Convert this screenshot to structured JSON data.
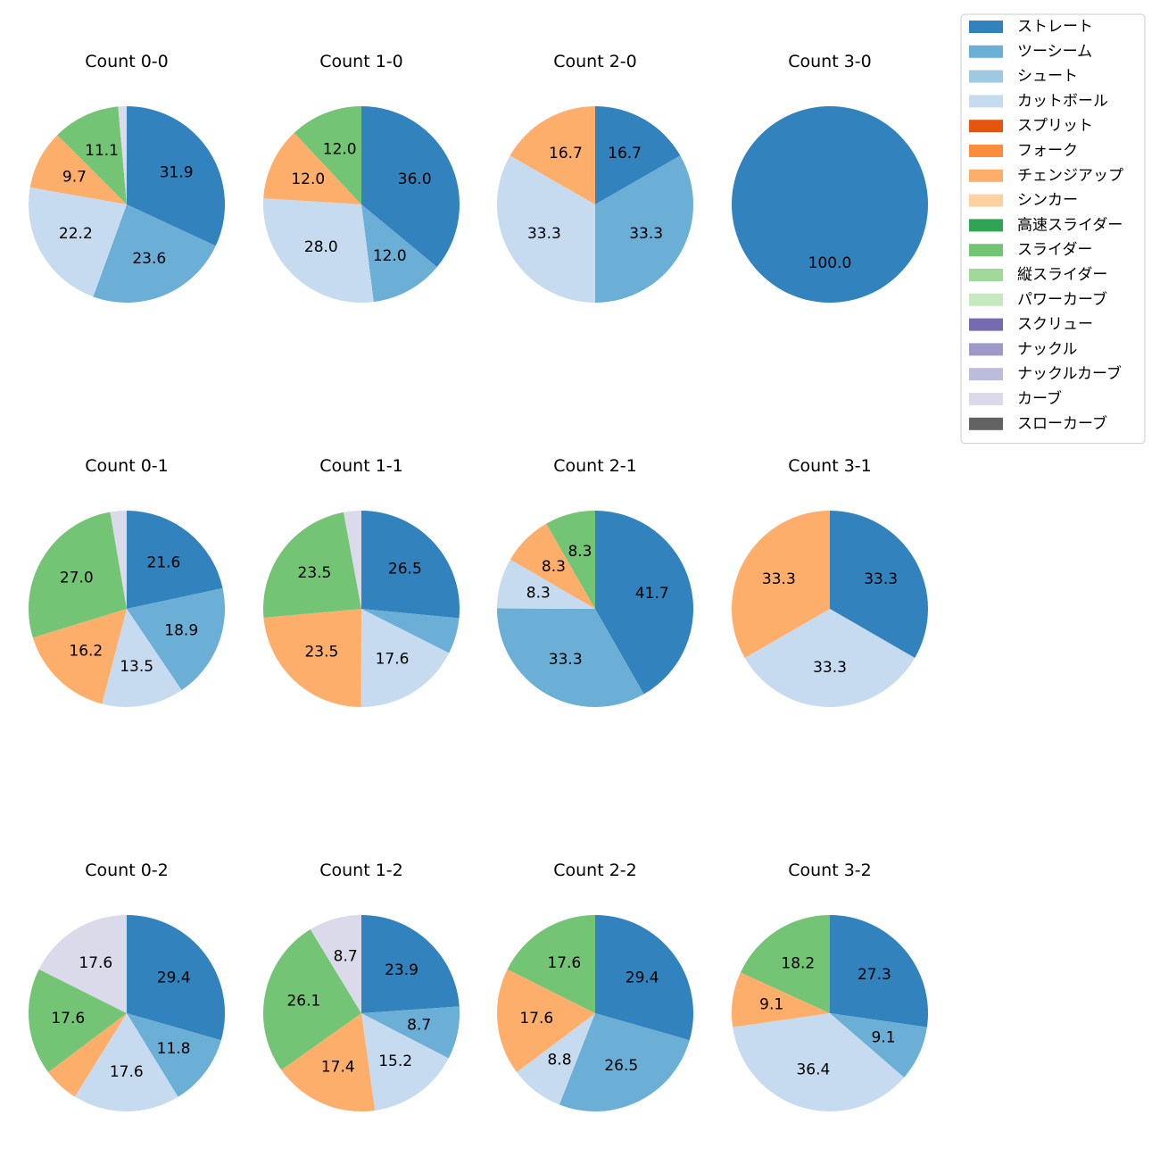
{
  "chart_data": {
    "type": "pie",
    "legend_position": "top-right",
    "legend": [
      {
        "label": "ストレート",
        "color": "#3182bd"
      },
      {
        "label": "ツーシーム",
        "color": "#6baed6"
      },
      {
        "label": "シュート",
        "color": "#9ecae1"
      },
      {
        "label": "カットボール",
        "color": "#c6dbef"
      },
      {
        "label": "スプリット",
        "color": "#e6550d"
      },
      {
        "label": "フォーク",
        "color": "#fd8d3c"
      },
      {
        "label": "チェンジアップ",
        "color": "#fdae6b"
      },
      {
        "label": "シンカー",
        "color": "#fdd0a2"
      },
      {
        "label": "高速スライダー",
        "color": "#31a354"
      },
      {
        "label": "スライダー",
        "color": "#74c476"
      },
      {
        "label": "縦スライダー",
        "color": "#a1d99b"
      },
      {
        "label": "パワーカーブ",
        "color": "#c7e9c0"
      },
      {
        "label": "スクリュー",
        "color": "#756bb1"
      },
      {
        "label": "ナックル",
        "color": "#9e9ac8"
      },
      {
        "label": "ナックルカーブ",
        "color": "#bcbddc"
      },
      {
        "label": "カーブ",
        "color": "#dadaeb"
      },
      {
        "label": "スローカーブ",
        "color": "#636363"
      }
    ],
    "charts": [
      {
        "title": "Count 0-0",
        "slices": [
          {
            "pitch": "ストレート",
            "value": 31.9,
            "label": "31.9"
          },
          {
            "pitch": "ツーシーム",
            "value": 23.6,
            "label": "23.6"
          },
          {
            "pitch": "カットボール",
            "value": 22.2,
            "label": "22.2"
          },
          {
            "pitch": "チェンジアップ",
            "value": 9.7,
            "label": "9.7"
          },
          {
            "pitch": "スライダー",
            "value": 11.1,
            "label": "11.1"
          },
          {
            "pitch": "カーブ",
            "value": 1.4,
            "label": ""
          }
        ]
      },
      {
        "title": "Count 1-0",
        "slices": [
          {
            "pitch": "ストレート",
            "value": 36.0,
            "label": "36.0"
          },
          {
            "pitch": "ツーシーム",
            "value": 12.0,
            "label": "12.0"
          },
          {
            "pitch": "カットボール",
            "value": 28.0,
            "label": "28.0"
          },
          {
            "pitch": "チェンジアップ",
            "value": 12.0,
            "label": "12.0"
          },
          {
            "pitch": "スライダー",
            "value": 12.0,
            "label": "12.0"
          }
        ]
      },
      {
        "title": "Count 2-0",
        "slices": [
          {
            "pitch": "ストレート",
            "value": 16.7,
            "label": "16.7"
          },
          {
            "pitch": "ツーシーム",
            "value": 33.3,
            "label": "33.3"
          },
          {
            "pitch": "カットボール",
            "value": 33.3,
            "label": "33.3"
          },
          {
            "pitch": "チェンジアップ",
            "value": 16.7,
            "label": "16.7"
          }
        ]
      },
      {
        "title": "Count 3-0",
        "slices": [
          {
            "pitch": "ストレート",
            "value": 100.0,
            "label": "100.0"
          }
        ]
      },
      {
        "title": "Count 0-1",
        "slices": [
          {
            "pitch": "ストレート",
            "value": 21.6,
            "label": "21.6"
          },
          {
            "pitch": "ツーシーム",
            "value": 18.9,
            "label": "18.9"
          },
          {
            "pitch": "カットボール",
            "value": 13.5,
            "label": "13.5"
          },
          {
            "pitch": "チェンジアップ",
            "value": 16.2,
            "label": "16.2"
          },
          {
            "pitch": "スライダー",
            "value": 27.0,
            "label": "27.0"
          },
          {
            "pitch": "カーブ",
            "value": 2.7,
            "label": ""
          }
        ]
      },
      {
        "title": "Count 1-1",
        "slices": [
          {
            "pitch": "ストレート",
            "value": 26.5,
            "label": "26.5"
          },
          {
            "pitch": "ツーシーム",
            "value": 5.9,
            "label": ""
          },
          {
            "pitch": "カットボール",
            "value": 17.6,
            "label": "17.6"
          },
          {
            "pitch": "チェンジアップ",
            "value": 23.5,
            "label": "23.5"
          },
          {
            "pitch": "スライダー",
            "value": 23.5,
            "label": "23.5"
          },
          {
            "pitch": "カーブ",
            "value": 2.9,
            "label": ""
          }
        ]
      },
      {
        "title": "Count 2-1",
        "slices": [
          {
            "pitch": "ストレート",
            "value": 41.7,
            "label": "41.7"
          },
          {
            "pitch": "ツーシーム",
            "value": 33.3,
            "label": "33.3"
          },
          {
            "pitch": "カットボール",
            "value": 8.3,
            "label": "8.3"
          },
          {
            "pitch": "チェンジアップ",
            "value": 8.3,
            "label": "8.3"
          },
          {
            "pitch": "スライダー",
            "value": 8.3,
            "label": "8.3"
          }
        ]
      },
      {
        "title": "Count 3-1",
        "slices": [
          {
            "pitch": "ストレート",
            "value": 33.3,
            "label": "33.3"
          },
          {
            "pitch": "カットボール",
            "value": 33.3,
            "label": "33.3"
          },
          {
            "pitch": "チェンジアップ",
            "value": 33.3,
            "label": "33.3"
          }
        ]
      },
      {
        "title": "Count 0-2",
        "slices": [
          {
            "pitch": "ストレート",
            "value": 29.4,
            "label": "29.4"
          },
          {
            "pitch": "ツーシーム",
            "value": 11.8,
            "label": "11.8"
          },
          {
            "pitch": "カットボール",
            "value": 17.6,
            "label": "17.6"
          },
          {
            "pitch": "チェンジアップ",
            "value": 5.9,
            "label": ""
          },
          {
            "pitch": "スライダー",
            "value": 17.6,
            "label": "17.6"
          },
          {
            "pitch": "カーブ",
            "value": 17.6,
            "label": "17.6"
          }
        ]
      },
      {
        "title": "Count 1-2",
        "slices": [
          {
            "pitch": "ストレート",
            "value": 23.9,
            "label": "23.9"
          },
          {
            "pitch": "ツーシーム",
            "value": 8.7,
            "label": "8.7"
          },
          {
            "pitch": "カットボール",
            "value": 15.2,
            "label": "15.2"
          },
          {
            "pitch": "チェンジアップ",
            "value": 17.4,
            "label": "17.4"
          },
          {
            "pitch": "スライダー",
            "value": 26.1,
            "label": "26.1"
          },
          {
            "pitch": "カーブ",
            "value": 8.7,
            "label": "8.7"
          }
        ]
      },
      {
        "title": "Count 2-2",
        "slices": [
          {
            "pitch": "ストレート",
            "value": 29.4,
            "label": "29.4"
          },
          {
            "pitch": "ツーシーム",
            "value": 26.5,
            "label": "26.5"
          },
          {
            "pitch": "カットボール",
            "value": 8.8,
            "label": "8.8"
          },
          {
            "pitch": "チェンジアップ",
            "value": 17.6,
            "label": "17.6"
          },
          {
            "pitch": "スライダー",
            "value": 17.6,
            "label": "17.6"
          }
        ]
      },
      {
        "title": "Count 3-2",
        "slices": [
          {
            "pitch": "ストレート",
            "value": 27.3,
            "label": "27.3"
          },
          {
            "pitch": "ツーシーム",
            "value": 9.1,
            "label": "9.1"
          },
          {
            "pitch": "カットボール",
            "value": 36.4,
            "label": "36.4"
          },
          {
            "pitch": "チェンジアップ",
            "value": 9.1,
            "label": "9.1"
          },
          {
            "pitch": "スライダー",
            "value": 18.2,
            "label": "18.2"
          }
        ]
      }
    ]
  }
}
